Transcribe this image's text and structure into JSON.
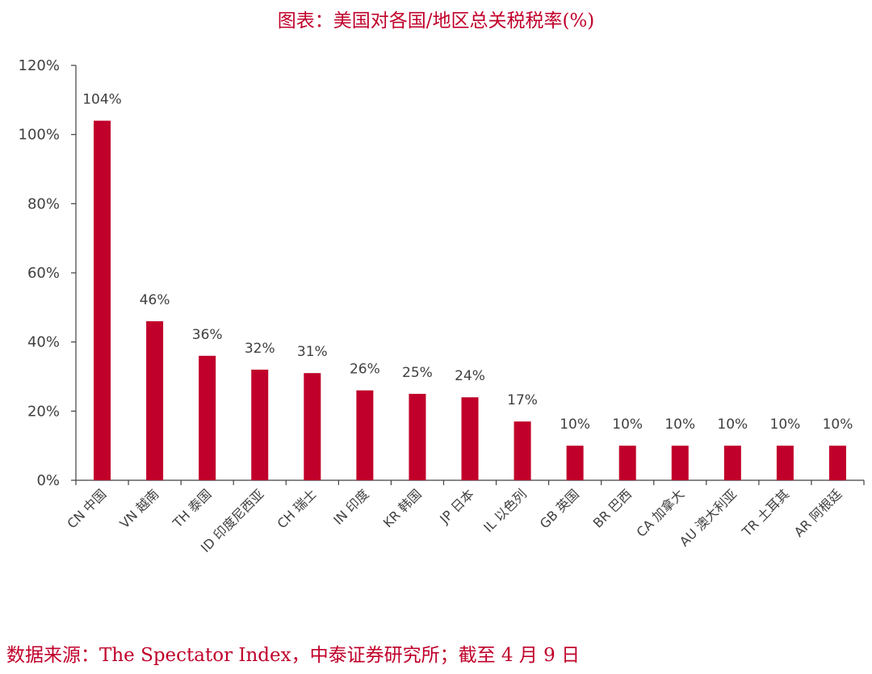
{
  "title": "图表：美国对各国/地区总关税税率(%)",
  "source": "数据来源：The Spectator Index，中泰证券研究所；截至 4 月 9 日",
  "chart_data": {
    "type": "bar",
    "categories": [
      "CN 中国",
      "VN 越南",
      "TH 泰国",
      "ID 印度尼西亚",
      "CH 瑞士",
      "IN 印度",
      "KR 韩国",
      "JP 日本",
      "IL 以色列",
      "GB 英国",
      "BR 巴西",
      "CA 加拿大",
      "AU 澳大利亚",
      "TR 土耳其",
      "AR 阿根廷"
    ],
    "values": [
      104,
      46,
      36,
      32,
      31,
      26,
      25,
      24,
      17,
      10,
      10,
      10,
      10,
      10,
      10
    ],
    "data_labels": [
      "104%",
      "46%",
      "36%",
      "32%",
      "31%",
      "26%",
      "25%",
      "24%",
      "17%",
      "10%",
      "10%",
      "10%",
      "10%",
      "10%",
      "10%"
    ],
    "yticks": [
      "0%",
      "20%",
      "40%",
      "60%",
      "80%",
      "100%",
      "120%"
    ],
    "ylim": [
      0,
      120
    ],
    "bar_color": "#c0002a",
    "grid": false,
    "legend": "none"
  }
}
